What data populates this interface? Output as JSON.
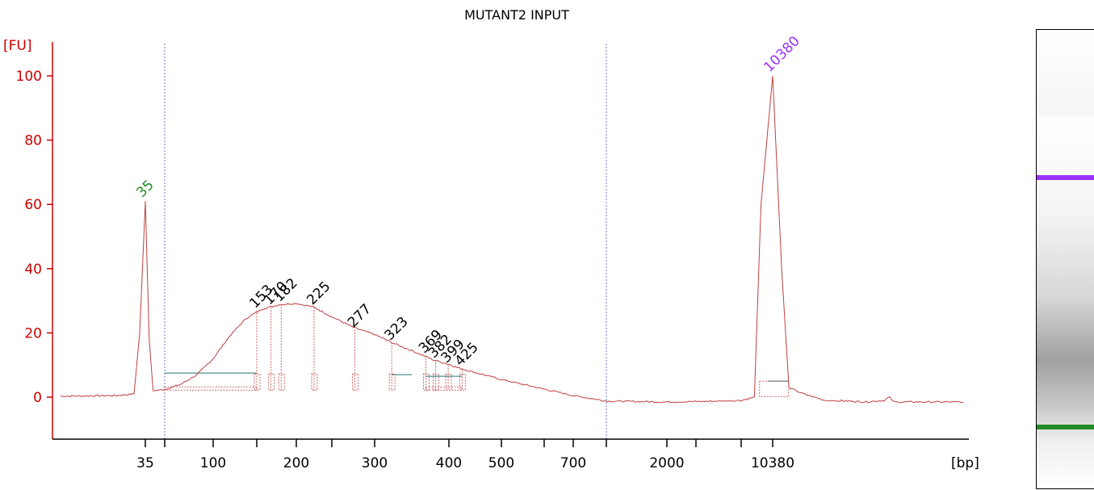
{
  "chart_data": {
    "type": "line",
    "title": "MUTANT2 INPUT",
    "y_unit_label": "[FU]",
    "x_unit_label": "[bp]",
    "ylim": [
      -11.5,
      111
    ],
    "y_ticks": [
      0,
      20,
      40,
      60,
      80,
      100
    ],
    "x_ticks": [
      "35",
      "100",
      "200",
      "300",
      "400",
      "500",
      "700",
      "2000",
      "10380"
    ],
    "grid": false,
    "colors": {
      "axis": "#cc0000",
      "trace": "#c04040",
      "marker_lower": "#228b22",
      "marker_upper": "#9b30ff",
      "peak_label": "#000000",
      "region_line": "#4f8f8f",
      "guide_line": "#7070d0"
    },
    "markers": [
      {
        "label": "35",
        "bp": 35,
        "fu": 61
      },
      {
        "label": "10380",
        "bp": 10380,
        "fu": 100
      }
    ],
    "peaks": [
      {
        "label": "153",
        "bp": 153,
        "fu": 27
      },
      {
        "label": "170",
        "bp": 170,
        "fu": 28
      },
      {
        "label": "182",
        "bp": 182,
        "fu": 29
      },
      {
        "label": "225",
        "bp": 225,
        "fu": 28
      },
      {
        "label": "277",
        "bp": 277,
        "fu": 21
      },
      {
        "label": "323",
        "bp": 323,
        "fu": 17
      },
      {
        "label": "369",
        "bp": 369,
        "fu": 13
      },
      {
        "label": "382",
        "bp": 382,
        "fu": 11.5
      },
      {
        "label": "399",
        "bp": 399,
        "fu": 10
      },
      {
        "label": "425",
        "bp": 425,
        "fu": 9
      }
    ],
    "trace": [
      {
        "bp": 20,
        "fu": 0.3
      },
      {
        "bp": 30,
        "fu": 0.5
      },
      {
        "bp": 33,
        "fu": 1
      },
      {
        "bp": 34,
        "fu": 20
      },
      {
        "bp": 35,
        "fu": 61
      },
      {
        "bp": 36,
        "fu": 18
      },
      {
        "bp": 37,
        "fu": 2
      },
      {
        "bp": 40,
        "fu": 2.4
      },
      {
        "bp": 60,
        "fu": 4
      },
      {
        "bp": 80,
        "fu": 7
      },
      {
        "bp": 100,
        "fu": 12
      },
      {
        "bp": 120,
        "fu": 19
      },
      {
        "bp": 140,
        "fu": 24.5
      },
      {
        "bp": 160,
        "fu": 27.5
      },
      {
        "bp": 180,
        "fu": 28.8
      },
      {
        "bp": 200,
        "fu": 29.2
      },
      {
        "bp": 225,
        "fu": 28
      },
      {
        "bp": 250,
        "fu": 25
      },
      {
        "bp": 277,
        "fu": 21.5
      },
      {
        "bp": 300,
        "fu": 19.5
      },
      {
        "bp": 323,
        "fu": 17
      },
      {
        "bp": 350,
        "fu": 14.5
      },
      {
        "bp": 380,
        "fu": 11.5
      },
      {
        "bp": 420,
        "fu": 9
      },
      {
        "bp": 500,
        "fu": 5.5
      },
      {
        "bp": 600,
        "fu": 2.5
      },
      {
        "bp": 700,
        "fu": 0.5
      },
      {
        "bp": 1000,
        "fu": -1.2
      },
      {
        "bp": 2000,
        "fu": -1.5
      },
      {
        "bp": 5000,
        "fu": -1.3
      },
      {
        "bp": 8000,
        "fu": -1
      },
      {
        "bp": 9000,
        "fu": 0
      },
      {
        "bp": 9500,
        "fu": 60
      },
      {
        "bp": 10380,
        "fu": 100
      },
      {
        "bp": 11000,
        "fu": 40
      },
      {
        "bp": 11500,
        "fu": 3
      },
      {
        "bp": 12500,
        "fu": 1
      },
      {
        "bp": 14000,
        "fu": -1
      },
      {
        "bp": 20000,
        "fu": -1.5
      },
      {
        "bp": 24000,
        "fu": -1
      },
      {
        "bp": 25000,
        "fu": 0
      },
      {
        "bp": 26000,
        "fu": -1.5
      },
      {
        "bp": 40000,
        "fu": -1.5
      }
    ],
    "regions": [
      {
        "from_bp": 40,
        "to_bp": 153,
        "fu": 7.5
      },
      {
        "from_bp": 323,
        "to_bp": 350,
        "fu": 7
      },
      {
        "from_bp": 369,
        "to_bp": 425,
        "fu": 6.5
      },
      {
        "from_bp": 10000,
        "to_bp": 11500,
        "fu": 5
      }
    ],
    "gel": {
      "lower_marker_color": "#228b22",
      "upper_marker_color": "#9b30ff"
    }
  }
}
